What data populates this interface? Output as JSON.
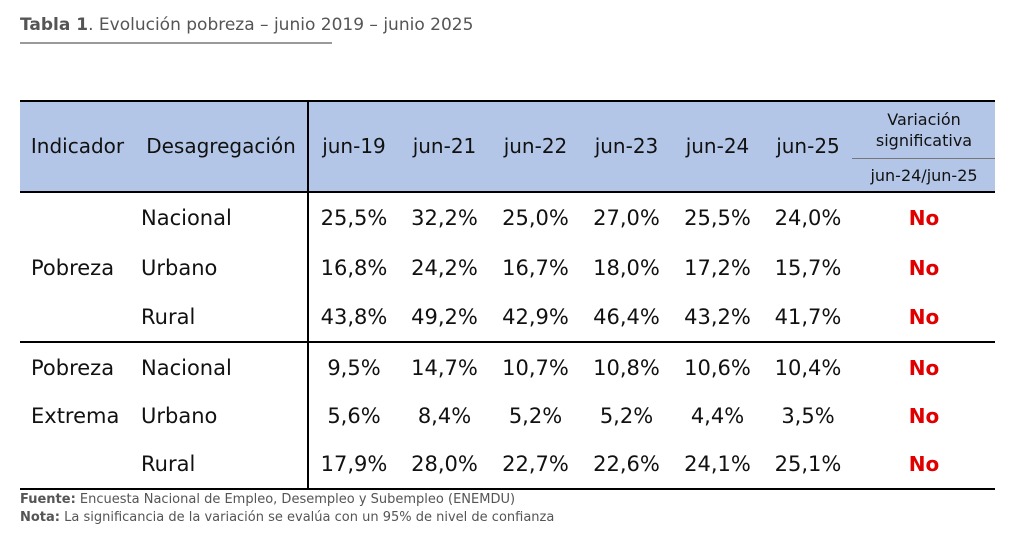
{
  "caption": {
    "label": "Tabla 1",
    "text": ". Evolución pobreza – junio 2019 – junio 2025"
  },
  "table": {
    "headers": {
      "indicador": "Indicador",
      "desagregacion": "Desagregación",
      "years": [
        "jun-19",
        "jun-21",
        "jun-22",
        "jun-23",
        "jun-24",
        "jun-25"
      ],
      "variacion": "Variación significativa",
      "variacion_sub": "jun-24/jun-25"
    },
    "groups": [
      {
        "indicator": [
          "Pobreza"
        ],
        "rows": [
          {
            "label": "Nacional",
            "values": [
              "25,5%",
              "32,2%",
              "25,0%",
              "27,0%",
              "25,5%",
              "24,0%"
            ],
            "sig": "No"
          },
          {
            "label": "Urbano",
            "values": [
              "16,8%",
              "24,2%",
              "16,7%",
              "18,0%",
              "17,2%",
              "15,7%"
            ],
            "sig": "No"
          },
          {
            "label": "Rural",
            "values": [
              "43,8%",
              "49,2%",
              "42,9%",
              "46,4%",
              "43,2%",
              "41,7%"
            ],
            "sig": "No"
          }
        ]
      },
      {
        "indicator": [
          "Pobreza",
          "Extrema"
        ],
        "rows": [
          {
            "label": "Nacional",
            "values": [
              "9,5%",
              "14,7%",
              "10,7%",
              "10,8%",
              "10,6%",
              "10,4%"
            ],
            "sig": "No"
          },
          {
            "label": "Urbano",
            "values": [
              "5,6%",
              "8,4%",
              "5,2%",
              "5,2%",
              "4,4%",
              "3,5%"
            ],
            "sig": "No"
          },
          {
            "label": "Rural",
            "values": [
              "17,9%",
              "28,0%",
              "22,7%",
              "22,6%",
              "24,1%",
              "25,1%"
            ],
            "sig": "No"
          }
        ]
      }
    ]
  },
  "footer": {
    "fuente_label": "Fuente:",
    "fuente_text": " Encuesta Nacional de Empleo, Desempleo y Subempleo (ENEMDU)",
    "nota_label": "Nota:",
    "nota_text": " La significancia de la variación se evalúa con un 95% de nivel de confianza"
  },
  "colors": {
    "header_bg": "#b4c6e7",
    "no_color": "#e00000"
  }
}
